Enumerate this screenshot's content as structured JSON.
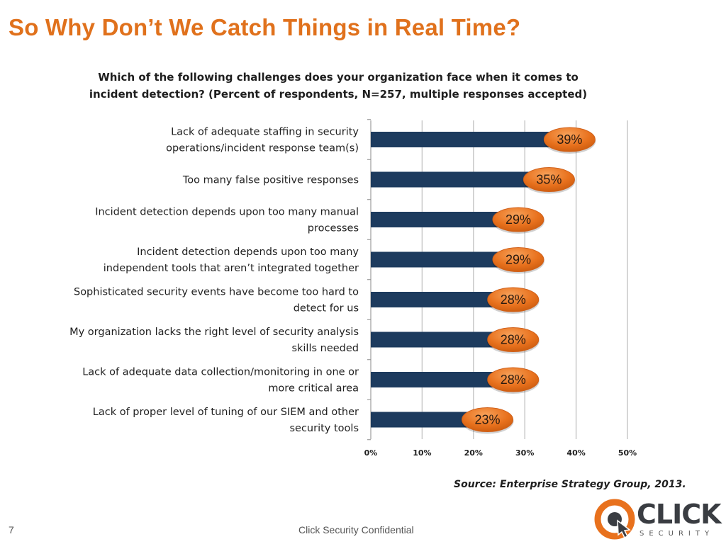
{
  "slide": {
    "title": "So Why Don’t We Catch Things in Real Time?",
    "page_number": "7",
    "footer": "Click Security Confidential",
    "source": "Source: Enterprise Strategy Group, 2013.",
    "logo_word": "CLICK",
    "logo_sub": "SECURITY"
  },
  "colors": {
    "title": "#e0711c",
    "bar": "#1d3b5e",
    "label_bubble": "#e8711d",
    "gridline": "#c9c9c9"
  },
  "chart_data": {
    "type": "bar",
    "orientation": "horizontal",
    "title_lines": [
      "Which of the following challenges does your organization face when it comes to",
      "incident detection? (Percent of respondents, N=257, multiple responses accepted)"
    ],
    "categories": [
      [
        "Lack of adequate staffing in security",
        "operations/incident response team(s)"
      ],
      [
        "Too many false positive responses"
      ],
      [
        "Incident detection depends upon too many manual",
        "processes"
      ],
      [
        "Incident detection depends upon too many",
        "independent tools that aren’t integrated together"
      ],
      [
        "Sophisticated security events have become too hard to",
        "detect for us"
      ],
      [
        "My organization lacks the right level of security analysis",
        "skills needed"
      ],
      [
        "Lack of adequate data collection/monitoring in one or",
        "more critical area"
      ],
      [
        "Lack of proper level of tuning of our SIEM and other",
        "security tools"
      ]
    ],
    "values": [
      39,
      35,
      29,
      29,
      28,
      28,
      28,
      23
    ],
    "data_labels": [
      "39%",
      "35%",
      "29%",
      "29%",
      "28%",
      "28%",
      "28%",
      "23%"
    ],
    "xlim": [
      0,
      50
    ],
    "xticks": [
      0,
      10,
      20,
      30,
      40,
      50
    ],
    "xtick_labels": [
      "0%",
      "10%",
      "20%",
      "30%",
      "40%",
      "50%"
    ],
    "grid": true
  }
}
